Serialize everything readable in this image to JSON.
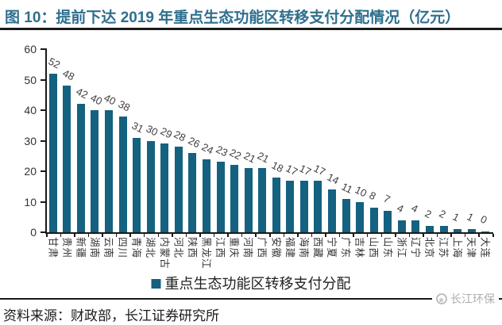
{
  "title": "图 10：提前下达 2019 年重点生态功能区转移支付分配情况（亿元）",
  "colors": {
    "bar": "#146180",
    "title": "#2E6F8E",
    "rule": "#1a1a1a",
    "watermark": "#ADADAD"
  },
  "legend": {
    "label": "重点生态功能区转移支付分配"
  },
  "chart_data": {
    "type": "bar",
    "title": "提前下达 2019 年重点生态功能区转移支付分配情况",
    "unit": "亿元",
    "categories": [
      "甘肃",
      "贵州",
      "新疆",
      "湖南",
      "云南",
      "四川",
      "青海",
      "湖北",
      "内蒙古",
      "河北",
      "陕西",
      "黑龙江",
      "江西",
      "重庆",
      "河南",
      "广西",
      "安徽",
      "福建",
      "海南",
      "西藏",
      "宁夏",
      "广东",
      "吉林",
      "山西",
      "山东",
      "浙江",
      "辽宁",
      "北京",
      "江苏",
      "上海",
      "天津",
      "大连"
    ],
    "values": [
      52,
      48,
      42,
      40,
      40,
      38,
      31,
      30,
      29,
      28,
      26,
      24,
      23,
      22,
      21,
      21,
      18,
      17,
      17,
      17,
      14,
      11,
      10,
      8,
      7,
      4,
      4,
      2,
      2,
      1,
      1,
      0
    ],
    "xlabel": "",
    "ylabel": "",
    "ylim": [
      0,
      60
    ],
    "yticks": [
      0,
      10,
      20,
      30,
      40,
      50,
      60
    ],
    "grid": false,
    "value_labels": true,
    "legend_position": "bottom-center"
  },
  "footer": {
    "source_note": "资料来源：财政部，长江证券研究所",
    "watermark_text": "长江环保"
  }
}
